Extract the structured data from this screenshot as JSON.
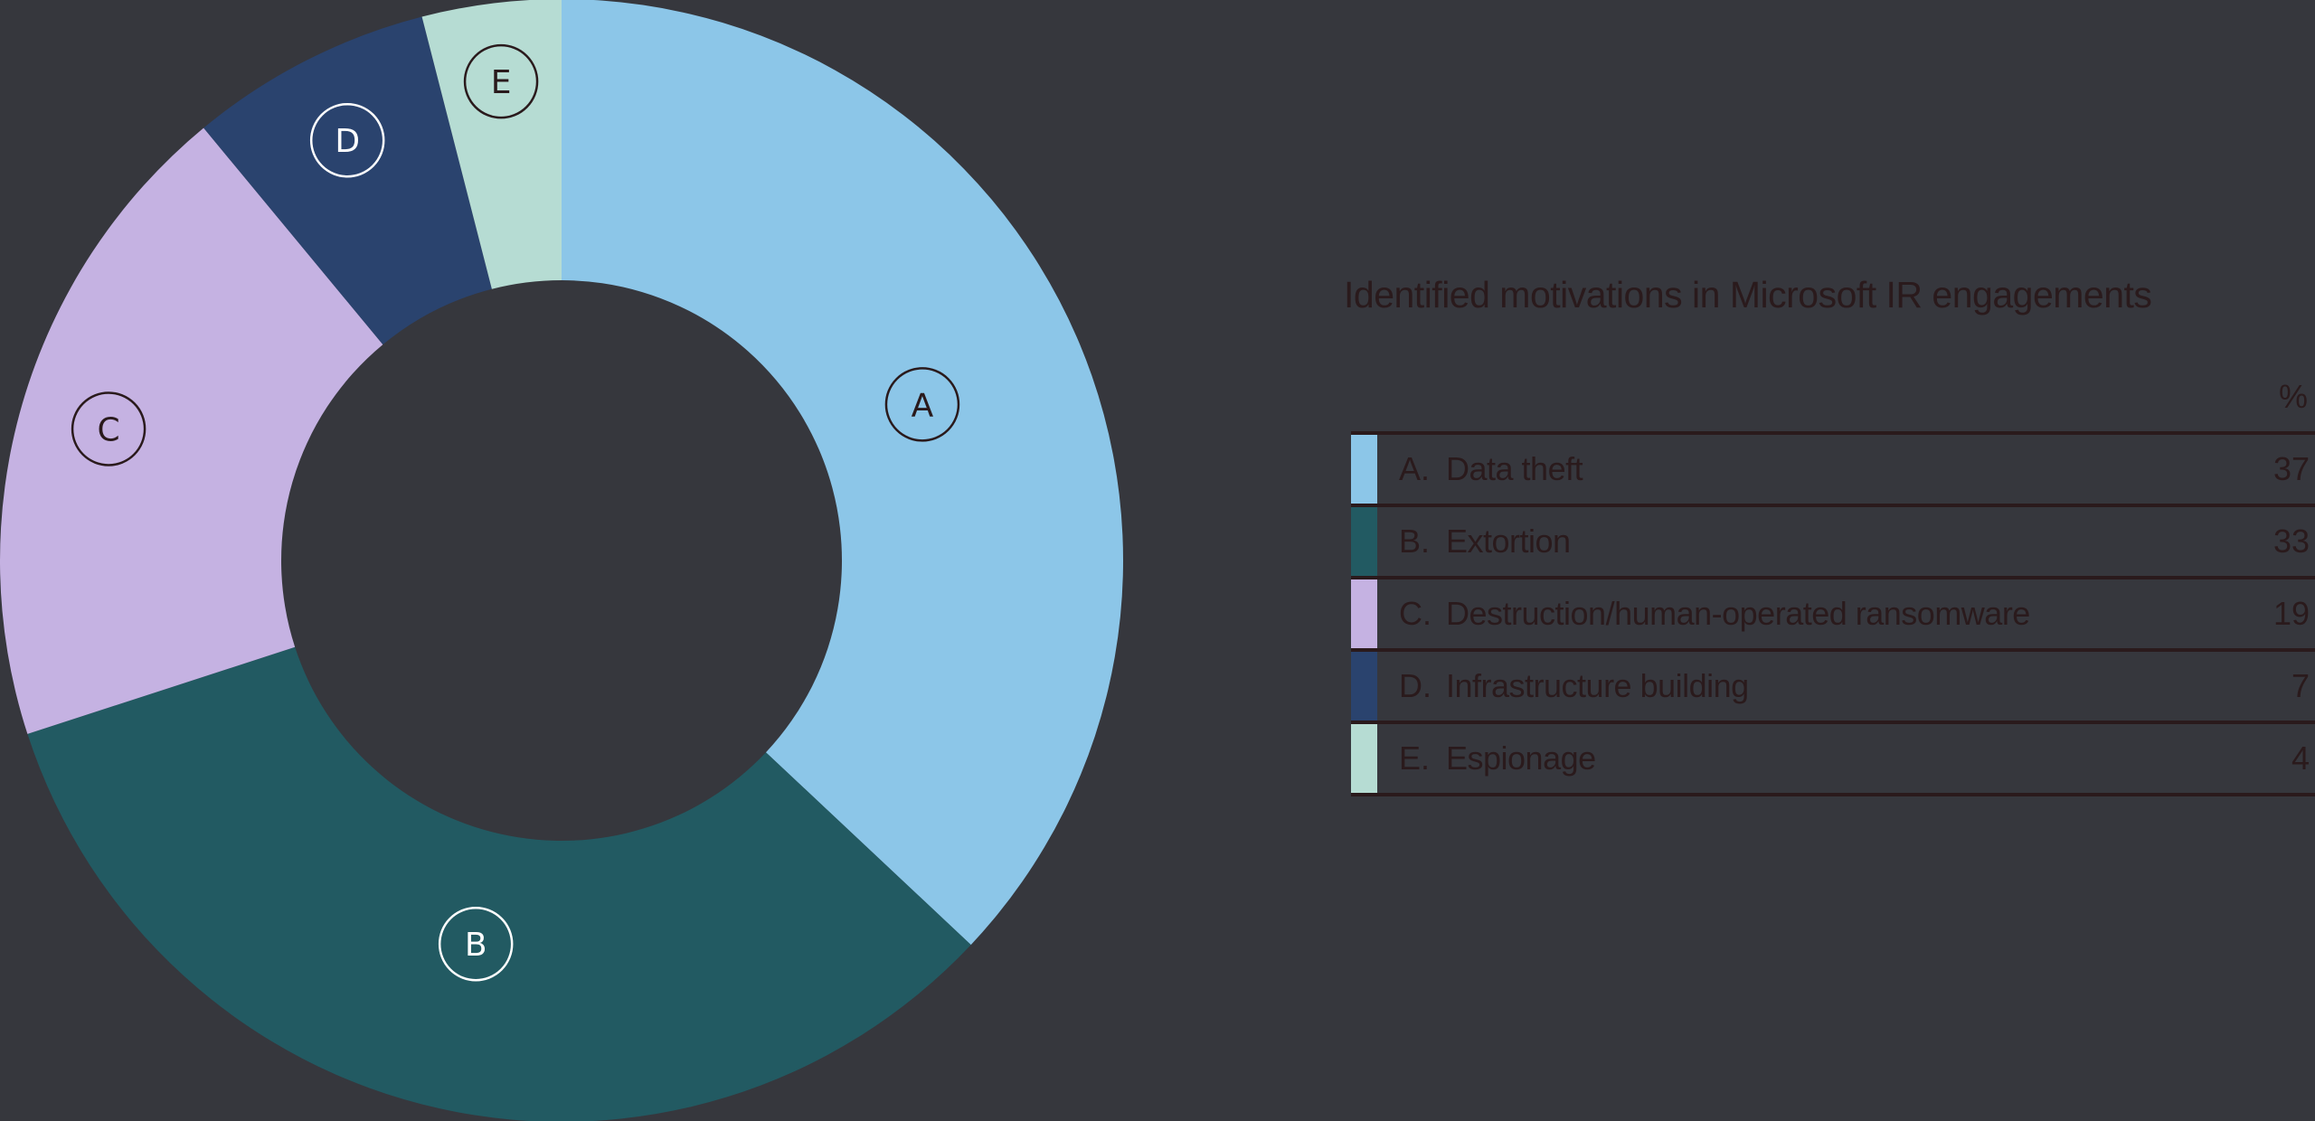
{
  "chart_data": {
    "type": "pie",
    "subtype": "donut",
    "title": "Identified motivations in Microsoft IR engagements",
    "value_unit": "%",
    "categories": [
      "A. Data theft",
      "B. Extortion",
      "C. Destruction/human-operated ransomware",
      "D. Infrastructure building",
      "E. Espionage"
    ],
    "values": [
      37,
      33,
      19,
      7,
      4
    ],
    "slice_labels": [
      "A",
      "B",
      "C",
      "D",
      "E"
    ],
    "colors": [
      "#8cc6e8",
      "#225a62",
      "#c5b2e2",
      "#2a436e",
      "#b6dcd3"
    ],
    "legend_position": "right"
  },
  "legend": {
    "title": "Identified motivations in Microsoft IR engagements",
    "column_header": "%",
    "rows": [
      {
        "letter": "A.",
        "label": "Data theft",
        "value": "37",
        "color": "#8cc6e8"
      },
      {
        "letter": "B.",
        "label": "Extortion",
        "value": "33",
        "color": "#225a62"
      },
      {
        "letter": "C.",
        "label": "Destruction/human-operated ransomware",
        "value": "19",
        "color": "#c5b2e2"
      },
      {
        "letter": "D.",
        "label": "Infrastructure building",
        "value": "7",
        "color": "#2a436e"
      },
      {
        "letter": "E.",
        "label": "Espionage",
        "value": "4",
        "color": "#b6dcd3"
      }
    ]
  },
  "colors": {
    "background": "#36373d",
    "text": "#2a1a1c",
    "label_dark": "#2a1a1c",
    "label_light": "#ffffff"
  }
}
